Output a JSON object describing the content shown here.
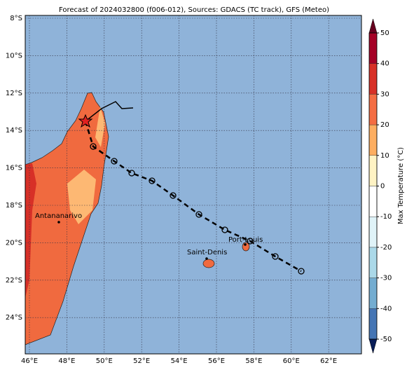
{
  "title": "Forecast of 2024032800 (f006-012), Sources: GDACS (TC track), GFS (Meteo)",
  "lon_ticks": [
    {
      "value": 46,
      "label": "46°E"
    },
    {
      "value": 48,
      "label": "48°E"
    },
    {
      "value": 50,
      "label": "50°E"
    },
    {
      "value": 52,
      "label": "52°E"
    },
    {
      "value": 54,
      "label": "54°E"
    },
    {
      "value": 56,
      "label": "56°E"
    },
    {
      "value": 58,
      "label": "58°E"
    },
    {
      "value": 60,
      "label": "60°E"
    },
    {
      "value": 62,
      "label": "62°E"
    }
  ],
  "lat_ticks": [
    {
      "value": 8,
      "label": "8°S"
    },
    {
      "value": 10,
      "label": "10°S"
    },
    {
      "value": 12,
      "label": "12°S"
    },
    {
      "value": 14,
      "label": "14°S"
    },
    {
      "value": 16,
      "label": "16°S"
    },
    {
      "value": 18,
      "label": "18°S"
    },
    {
      "value": 20,
      "label": "20°S"
    },
    {
      "value": 22,
      "label": "22°S"
    },
    {
      "value": 24,
      "label": "24°S"
    }
  ],
  "colorbar": {
    "label": "Max Temperature (°C)",
    "ticks": [
      50,
      40,
      30,
      20,
      10,
      0,
      -10,
      -20,
      -30,
      -40,
      -50
    ]
  },
  "cities": [
    "Antananarivo",
    "Saint-Denis",
    "Port-Louis"
  ]
}
